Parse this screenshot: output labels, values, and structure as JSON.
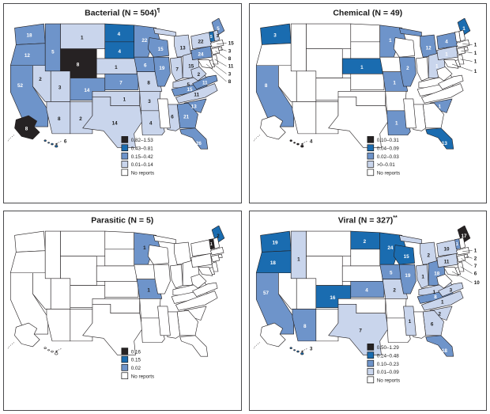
{
  "figure": {
    "background": "#ffffff"
  },
  "colors": {
    "black": "#262223",
    "dark": "#1a6cb0",
    "medium": "#6e94ca",
    "light": "#c9d5ec",
    "none": "#ffffff",
    "outline": "#231f20",
    "panel_border": "#4a4a4c",
    "label_dark_text": "#1a1a1a",
    "label_light_text": "#ffffff"
  },
  "chart_data": [
    {
      "type": "choropleth",
      "title_base": "Bacterial (N = 504)",
      "title_sup": "¶",
      "legend": [
        [
          "black",
          "0.82–1.53"
        ],
        [
          "dark",
          "0.43–0.81"
        ],
        [
          "medium",
          "0.15–0.42"
        ],
        [
          "light",
          "0.01–0.14"
        ],
        [
          "none",
          "No reports"
        ]
      ],
      "states": {
        "WA": [
          "18",
          "medium",
          "w"
        ],
        "OR": [
          "12",
          "medium",
          "w"
        ],
        "CA": [
          "52",
          "medium",
          "w"
        ],
        "NV": [
          "2",
          "light",
          "b"
        ],
        "ID": [
          "5",
          "medium",
          "w"
        ],
        "MT": [
          "1",
          "light",
          "b"
        ],
        "WY": [
          "8",
          "black",
          "w"
        ],
        "UT": [
          "3",
          "light",
          "b"
        ],
        "AZ": [
          "8",
          "light",
          "b"
        ],
        "NM": [
          "2",
          "light",
          "b"
        ],
        "CO": [
          "14",
          "medium",
          "w"
        ],
        "ND": [
          "4",
          "dark",
          "w"
        ],
        "SD": [
          "4",
          "dark",
          "w"
        ],
        "NE": [
          "1",
          "light",
          "b"
        ],
        "KS": [
          "7",
          "medium",
          "w"
        ],
        "OK": [
          "1",
          "light",
          "b"
        ],
        "TX": [
          "14",
          "light",
          "b"
        ],
        "MN": [
          "22",
          "medium",
          "w"
        ],
        "IA": [
          "6",
          "medium",
          "w"
        ],
        "MO": [
          "8",
          "light",
          "b"
        ],
        "AR": [
          "3",
          "light",
          "b"
        ],
        "LA": [
          "4",
          "light",
          "b"
        ],
        "WI": [
          "15",
          "medium",
          "w"
        ],
        "IL": [
          "19",
          "medium",
          "w"
        ],
        "MI": [
          "13",
          "light",
          "b"
        ],
        "IN": [
          "7",
          "light",
          "b"
        ],
        "OH": [
          "15",
          "light",
          "b"
        ],
        "KY": [
          "5",
          "light",
          "b"
        ],
        "TN": [
          "15",
          "medium",
          "w"
        ],
        "AL": [
          "6",
          "light",
          "b"
        ],
        "GA": [
          "21",
          "medium",
          "w"
        ],
        "FL": [
          "26",
          "medium",
          "w"
        ],
        "SC": [
          "13",
          "medium",
          "w"
        ],
        "NC": [
          "11",
          "light",
          "b"
        ],
        "VA": [
          "11",
          "medium",
          "w"
        ],
        "WV": [
          "2",
          "light",
          "b"
        ],
        "PA": [
          "24",
          "medium",
          "w"
        ],
        "NY": [
          "22",
          "light",
          "b"
        ],
        "ME": [
          "5",
          "medium",
          "w"
        ],
        "VT": [
          "5",
          "dark",
          "w"
        ],
        "NH": [
          "3",
          "light",
          "b"
        ],
        "AK": [
          "8",
          "black",
          "w"
        ],
        "HI": [
          "6",
          "dark",
          "b"
        ]
      },
      "callouts": [
        [
          "MA",
          "15",
          "medium"
        ],
        [
          "RI",
          "3",
          "medium"
        ],
        [
          "CT",
          "8",
          "medium"
        ],
        [
          "NJ",
          "11",
          "medium"
        ],
        [
          "DE",
          "3",
          "medium"
        ],
        [
          "MD",
          "8",
          "medium"
        ]
      ]
    },
    {
      "type": "choropleth",
      "title_base": "Chemical (N = 49)",
      "title_sup": "",
      "legend": [
        [
          "black",
          "0.10–0.31"
        ],
        [
          "dark",
          "0.04–0.09"
        ],
        [
          "medium",
          "0.02–0.03"
        ],
        [
          "light",
          ">0–0.01"
        ],
        [
          "none",
          "No reports"
        ]
      ],
      "states": {
        "WA": [
          "3",
          "dark",
          "w"
        ],
        "CA": [
          "8",
          "medium",
          "w"
        ],
        "NE": [
          "1",
          "dark",
          "w"
        ],
        "MN": [
          "1",
          "medium",
          "w"
        ],
        "MI": [
          "12",
          "medium",
          "w"
        ],
        "IL": [
          "2",
          "medium",
          "w"
        ],
        "MO": [
          "1",
          "medium",
          "w"
        ],
        "OH": [
          "1",
          "light",
          "w"
        ],
        "PA": [
          "1",
          "light",
          "w"
        ],
        "NY": [
          "4",
          "medium",
          "w"
        ],
        "ME": [
          "1",
          "dark",
          "w"
        ],
        "SC": [
          "1",
          "medium",
          "w"
        ],
        "LA": [
          "1",
          "medium",
          "w"
        ],
        "FL": [
          "13",
          "dark",
          "w"
        ],
        "HI": [
          "4",
          "black",
          "b"
        ]
      },
      "callouts": [
        [
          "MA",
          "1",
          "medium"
        ],
        [
          "CT",
          "1",
          "medium"
        ],
        [
          "NJ",
          "1",
          "medium"
        ],
        [
          "MD",
          "1",
          "medium"
        ]
      ]
    },
    {
      "type": "choropleth",
      "title_base": "Parasitic (N = 5)",
      "title_sup": "",
      "legend": [
        [
          "black",
          "0.16"
        ],
        [
          "dark",
          "0.15"
        ],
        [
          "medium",
          "0.02"
        ],
        [
          "none",
          "No reports"
        ]
      ],
      "states": {
        "MN": [
          "1",
          "medium",
          "b"
        ],
        "MO": [
          "1",
          "medium",
          "b"
        ],
        "ME": [
          "2",
          "dark",
          "b"
        ],
        "VT": [
          "1",
          "black",
          "w"
        ]
      },
      "callouts": []
    },
    {
      "type": "choropleth",
      "title_base": "Viral (N = 327)",
      "title_sup": "**",
      "legend": [
        [
          "black",
          "0.50–1.29"
        ],
        [
          "dark",
          "0.24–0.48"
        ],
        [
          "medium",
          "0.10–0.23"
        ],
        [
          "light",
          "0.01–0.09"
        ],
        [
          "none",
          "No reports"
        ]
      ],
      "states": {
        "WA": [
          "19",
          "dark",
          "w"
        ],
        "OR": [
          "18",
          "dark",
          "w"
        ],
        "ID": [
          "1",
          "light",
          "b"
        ],
        "CA": [
          "57",
          "medium",
          "w"
        ],
        "AZ": [
          "8",
          "medium",
          "w"
        ],
        "CO": [
          "16",
          "dark",
          "w"
        ],
        "ND": [
          "2",
          "dark",
          "w"
        ],
        "MN": [
          "24",
          "dark",
          "w"
        ],
        "WI": [
          "15",
          "dark",
          "w"
        ],
        "IA": [
          "5",
          "medium",
          "w"
        ],
        "KS": [
          "4",
          "medium",
          "w"
        ],
        "MO": [
          "2",
          "light",
          "b"
        ],
        "IL": [
          "19",
          "medium",
          "w"
        ],
        "IN": [
          "1",
          "light",
          "b"
        ],
        "MI": [
          "2",
          "light",
          "b"
        ],
        "OH": [
          "18",
          "medium",
          "w"
        ],
        "KY": [
          "1",
          "light",
          "b"
        ],
        "TN": [
          "8",
          "medium",
          "w"
        ],
        "TX": [
          "7",
          "light",
          "b"
        ],
        "MS": [
          "1",
          "light",
          "b"
        ],
        "GA": [
          "6",
          "light",
          "b"
        ],
        "SC": [
          "2",
          "light",
          "b"
        ],
        "NC": [
          "1",
          "light",
          "b"
        ],
        "VA": [
          "3",
          "light",
          "b"
        ],
        "FL": [
          "18",
          "medium",
          "w"
        ],
        "PA": [
          "11",
          "light",
          "b"
        ],
        "NY": [
          "10",
          "light",
          "b"
        ],
        "ME": [
          "17",
          "black",
          "w"
        ],
        "VT": [
          "1",
          "medium",
          "w"
        ],
        "HI": [
          "3",
          "dark",
          "b"
        ]
      },
      "callouts": [
        [
          "MA",
          "1",
          "light"
        ],
        [
          "RI",
          "2",
          "medium"
        ],
        [
          "CT",
          "7",
          "medium"
        ],
        [
          "NJ",
          "6",
          "medium"
        ],
        [
          "MD",
          "10",
          "medium"
        ]
      ]
    }
  ]
}
